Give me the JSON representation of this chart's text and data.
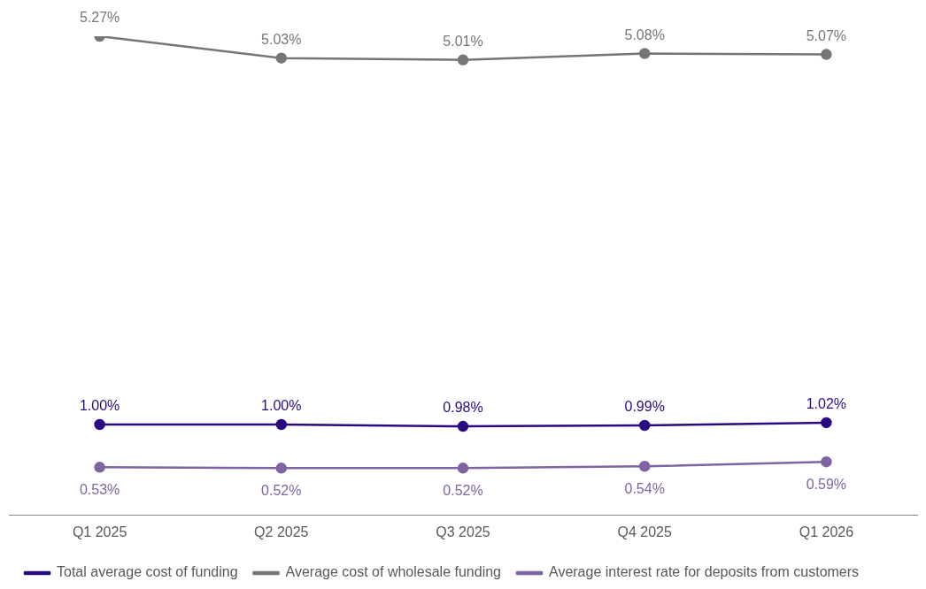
{
  "chart_data": {
    "type": "line",
    "categories": [
      "Q1 2025",
      "Q2 2025",
      "Q3 2025",
      "Q4 2025",
      "Q1 2026"
    ],
    "series": [
      {
        "name": "Total average cost of funding",
        "color": "#2a0a80",
        "values": [
          1.0,
          1.0,
          0.98,
          0.99,
          1.02
        ],
        "value_labels": [
          "1.00%",
          "1.00%",
          "0.98%",
          "0.99%",
          "1.02%"
        ]
      },
      {
        "name": "Average cost of wholesale funding",
        "color": "#767676",
        "values": [
          5.27,
          5.03,
          5.01,
          5.08,
          5.07
        ],
        "value_labels": [
          "5.27%",
          "5.03%",
          "5.01%",
          "5.08%",
          "5.07%"
        ]
      },
      {
        "name": "Average interest rate for deposits from customers",
        "color": "#7e64a0",
        "values": [
          0.53,
          0.52,
          0.52,
          0.54,
          0.59
        ],
        "value_labels": [
          "0.53%",
          "0.52%",
          "0.52%",
          "0.54%",
          "0.59%"
        ]
      }
    ],
    "legend": "bottom left",
    "marker": "circle",
    "line_style": "solid",
    "tick_labels": "x"
  }
}
